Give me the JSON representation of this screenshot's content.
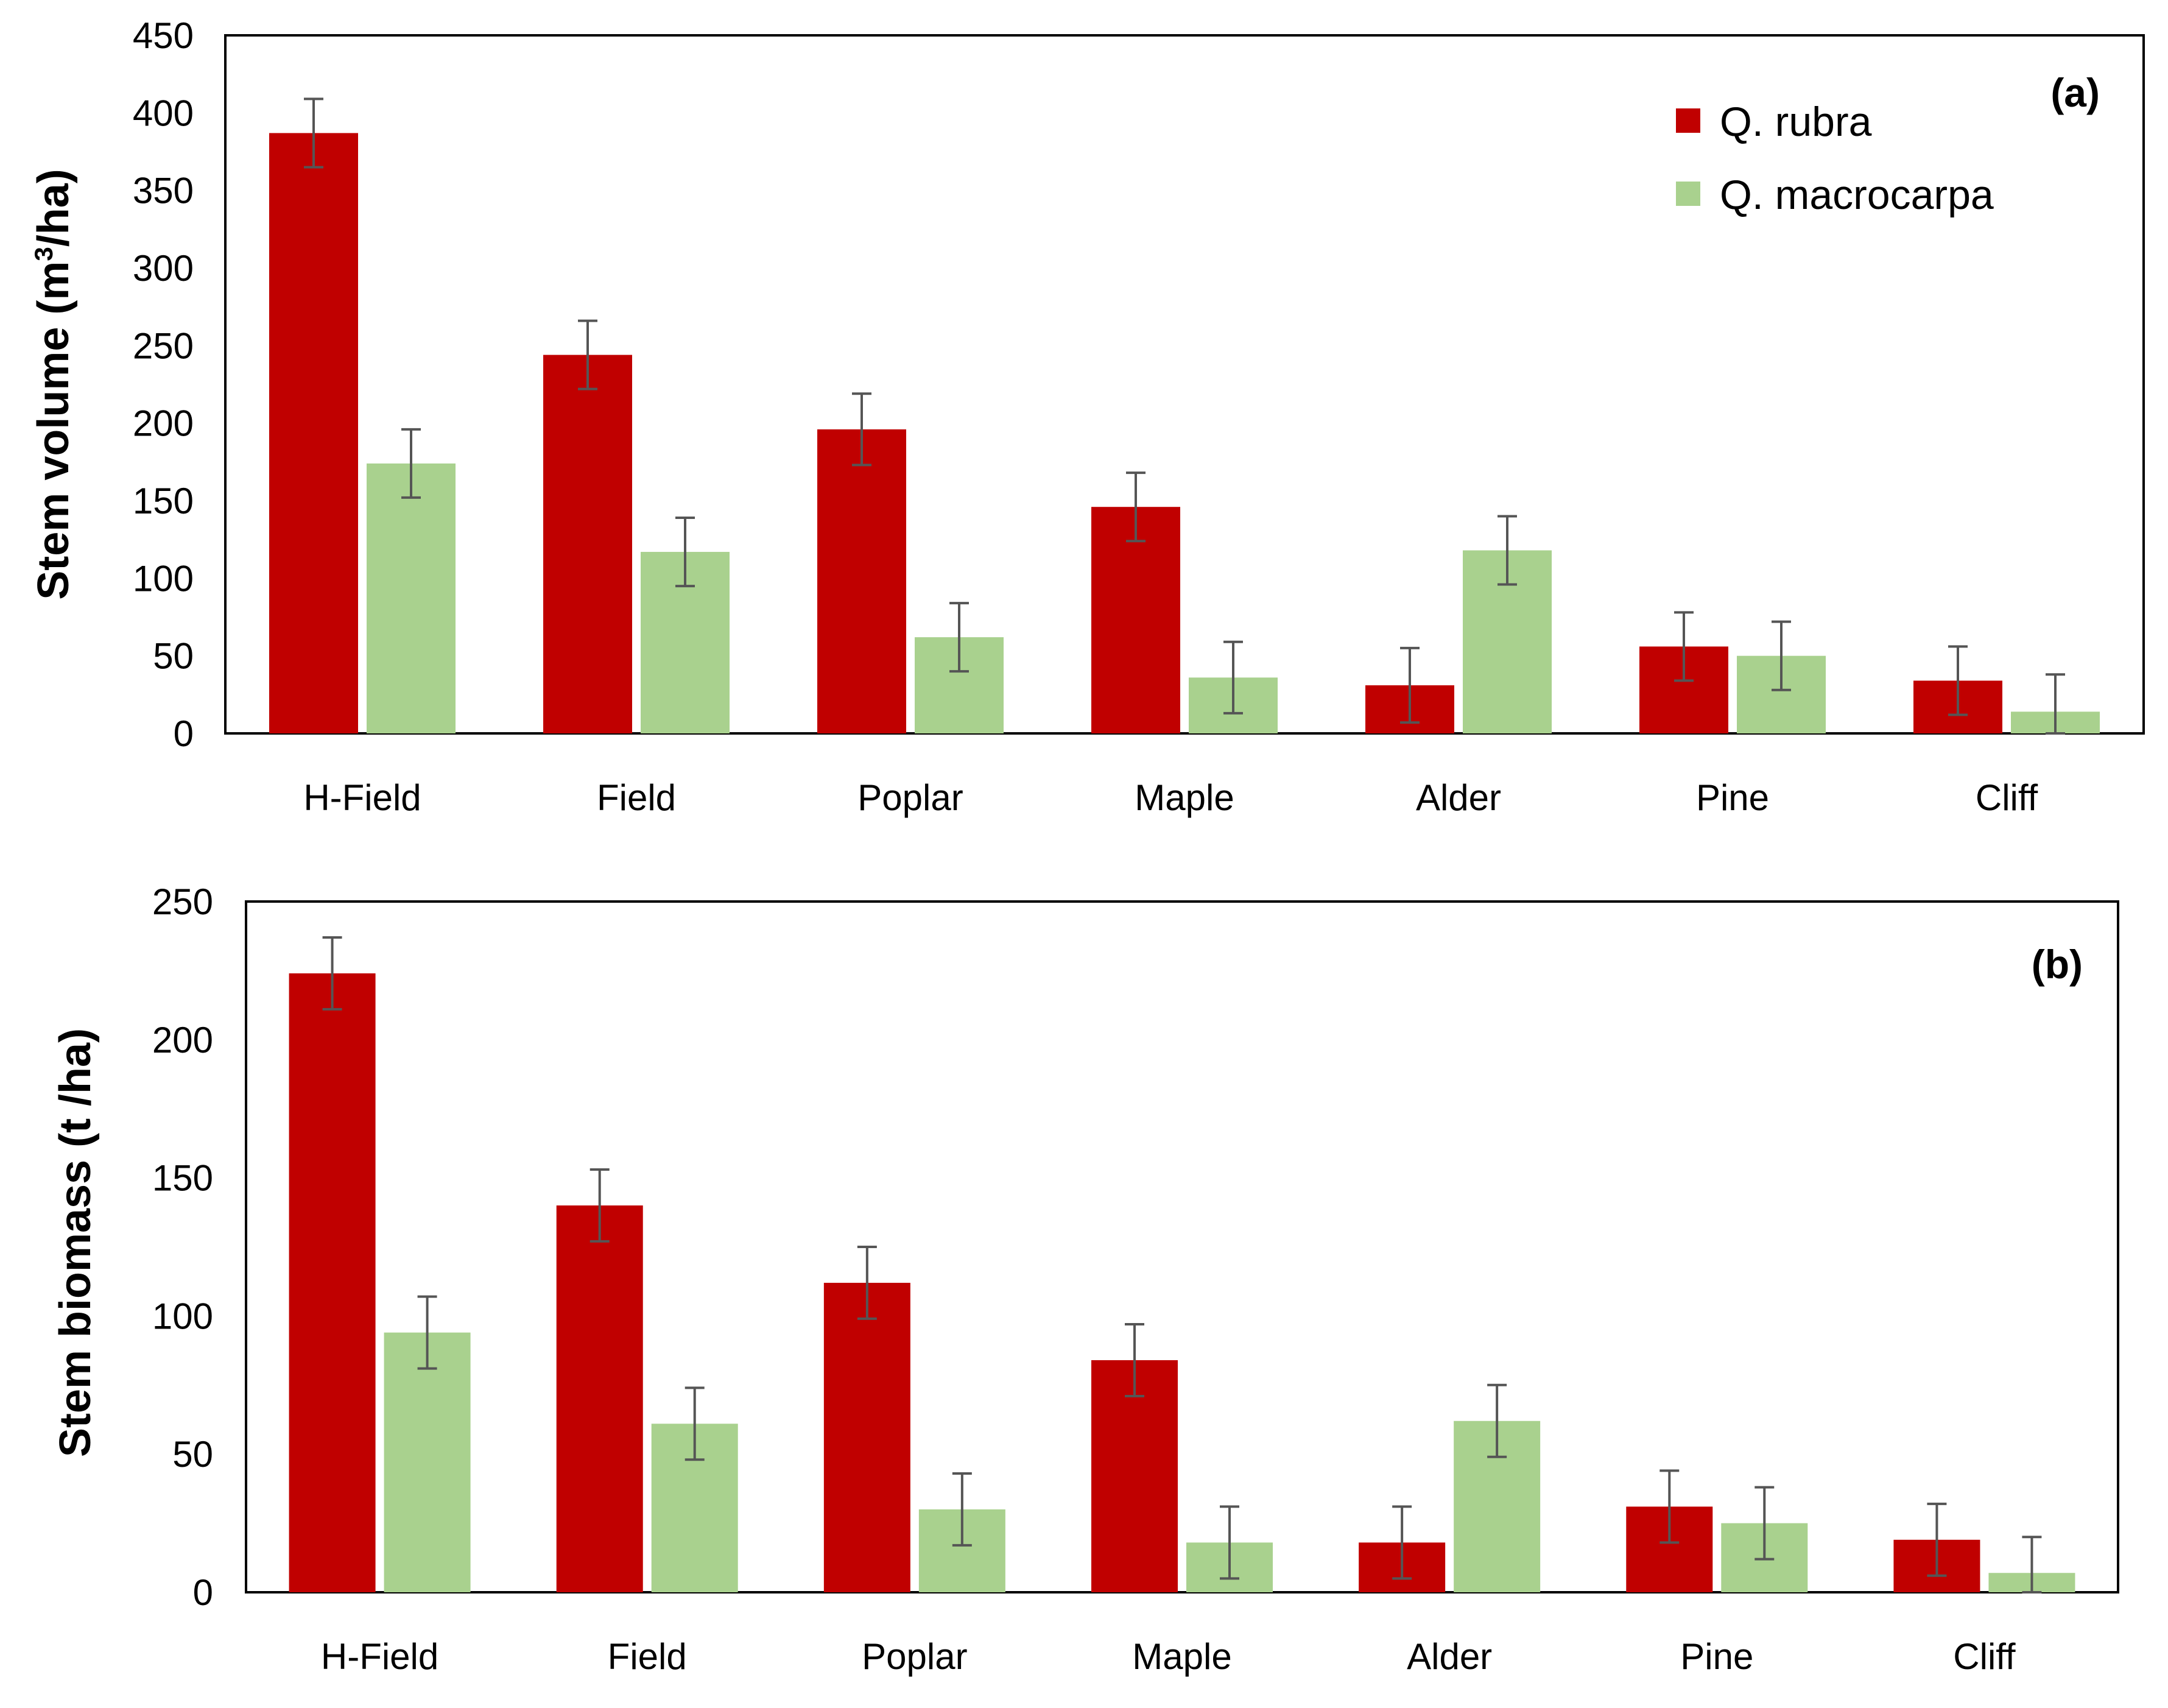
{
  "chart_data": [
    {
      "type": "bar",
      "panel_label": "(a)",
      "ylabel": "Stem volume (m³/ha)",
      "ylabel_pre": "Stem volume (m",
      "ylabel_sup": "3",
      "ylabel_post": "/ha)",
      "ylim": [
        0,
        450
      ],
      "yticks": [
        0,
        50,
        100,
        150,
        200,
        250,
        300,
        350,
        400,
        450
      ],
      "categories": [
        "H-Field",
        "Field",
        "Poplar",
        "Maple",
        "Alder",
        "Pine",
        "Cliff"
      ],
      "series": [
        {
          "name": "Q. rubra",
          "color": "#C00000",
          "values": [
            387,
            244,
            196,
            146,
            31,
            56,
            34
          ],
          "errors": [
            22,
            22,
            23,
            22,
            24,
            22,
            22
          ]
        },
        {
          "name": "Q. macrocarpa",
          "color": "#A9D18E",
          "values": [
            174,
            117,
            62,
            36,
            118,
            50,
            14
          ],
          "errors": [
            22,
            22,
            22,
            23,
            22,
            22,
            24
          ]
        }
      ],
      "legend": "top-right"
    },
    {
      "type": "bar",
      "panel_label": "(b)",
      "ylabel": "Stem biomass (t /ha)",
      "ylim": [
        0,
        250
      ],
      "yticks": [
        0,
        50,
        100,
        150,
        200,
        250
      ],
      "categories": [
        "H-Field",
        "Field",
        "Poplar",
        "Maple",
        "Alder",
        "Pine",
        "Cliff"
      ],
      "series": [
        {
          "name": "Q. rubra",
          "color": "#C00000",
          "values": [
            224,
            140,
            112,
            84,
            18,
            31,
            19
          ],
          "errors": [
            13,
            13,
            13,
            13,
            13,
            13,
            13
          ]
        },
        {
          "name": "Q. macrocarpa",
          "color": "#A9D18E",
          "values": [
            94,
            61,
            30,
            18,
            62,
            25,
            7
          ],
          "errors": [
            13,
            13,
            13,
            13,
            13,
            13,
            13
          ]
        }
      ]
    }
  ]
}
